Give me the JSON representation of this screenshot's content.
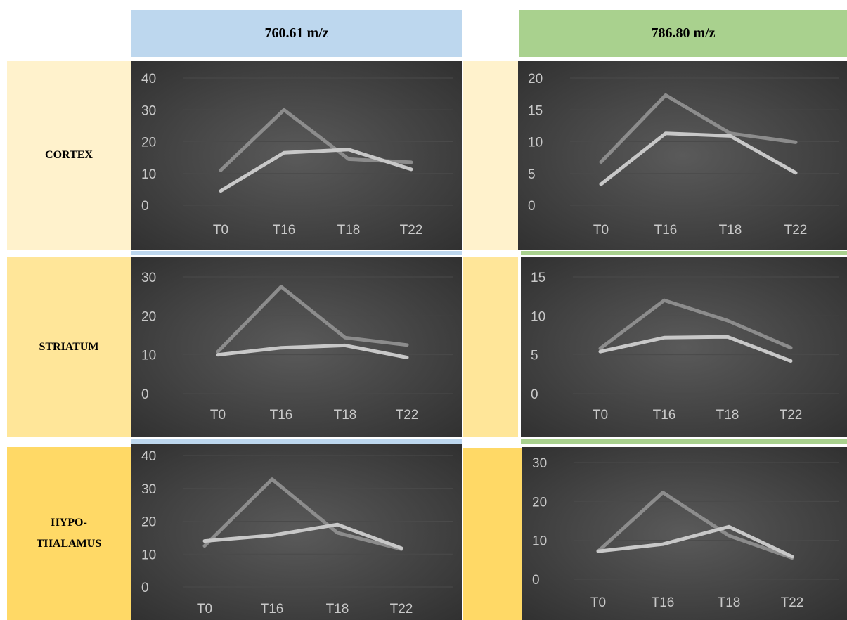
{
  "headers": {
    "left": {
      "label": "760.61 m/z",
      "color": "#bdd7ee"
    },
    "right": {
      "label": "786.80 m/z",
      "color": "#a9d18e"
    }
  },
  "rows": [
    {
      "label": "CORTEX",
      "color": "#fff2cc"
    },
    {
      "label": "STRIATUM",
      "color": "#ffe699"
    },
    {
      "label": "HYPO-THALAMUS",
      "label_lines": [
        "HYPO-",
        "THALAMUS"
      ],
      "color": "#ffd966"
    }
  ],
  "chart_style": {
    "background": "#2e2e2e",
    "line_dark": "#8c8c8c",
    "line_light": "#c8c8c8",
    "gridline": "#4a4a4a"
  },
  "chart_data": [
    {
      "type": "line",
      "panel": "cortex-760.61",
      "categories": [
        "T0",
        "T16",
        "T18",
        "T22"
      ],
      "ylim": [
        0,
        40
      ],
      "yticks": [
        0,
        10,
        20,
        30,
        40
      ],
      "series": [
        {
          "values": [
            11,
            30,
            14.5,
            13.5
          ]
        },
        {
          "values": [
            4.5,
            16.5,
            17.5,
            11.3
          ]
        }
      ]
    },
    {
      "type": "line",
      "panel": "cortex-786.80",
      "categories": [
        "T0",
        "T16",
        "T18",
        "T22"
      ],
      "ylim": [
        0,
        20
      ],
      "yticks": [
        0,
        5,
        10,
        15,
        20
      ],
      "series": [
        {
          "values": [
            6.8,
            17.3,
            11.3,
            9.9
          ]
        },
        {
          "values": [
            3.3,
            11.3,
            10.9,
            5.1
          ]
        }
      ]
    },
    {
      "type": "line",
      "panel": "striatum-760.61",
      "categories": [
        "T0",
        "T16",
        "T18",
        "T22"
      ],
      "ylim": [
        0,
        30
      ],
      "yticks": [
        0,
        10,
        20,
        30
      ],
      "series": [
        {
          "values": [
            10.8,
            27.5,
            14.4,
            12.5
          ]
        },
        {
          "values": [
            10,
            11.8,
            12.4,
            9.3
          ]
        }
      ]
    },
    {
      "type": "line",
      "panel": "striatum-786.80",
      "categories": [
        "T0",
        "T16",
        "T18",
        "T22"
      ],
      "ylim": [
        0,
        15
      ],
      "yticks": [
        0,
        5,
        10,
        15
      ],
      "series": [
        {
          "values": [
            5.8,
            12,
            9.4,
            5.9
          ]
        },
        {
          "values": [
            5.4,
            7.2,
            7.3,
            4.2
          ]
        }
      ]
    },
    {
      "type": "line",
      "panel": "hypothalamus-760.61",
      "categories": [
        "T0",
        "T16",
        "T18",
        "T22"
      ],
      "ylim": [
        0,
        40
      ],
      "yticks": [
        0,
        10,
        20,
        30,
        40
      ],
      "series": [
        {
          "values": [
            12.5,
            32.8,
            16.5,
            11.5
          ]
        },
        {
          "values": [
            14,
            15.7,
            19,
            11.8
          ]
        }
      ]
    },
    {
      "type": "line",
      "panel": "hypothalamus-786.80",
      "categories": [
        "T0",
        "T16",
        "T18",
        "T22"
      ],
      "ylim": [
        0,
        30
      ],
      "yticks": [
        0,
        10,
        20,
        30
      ],
      "series": [
        {
          "values": [
            7.2,
            22.3,
            11.2,
            5.5
          ]
        },
        {
          "values": [
            7.2,
            9,
            13.5,
            5.8
          ]
        }
      ]
    }
  ]
}
